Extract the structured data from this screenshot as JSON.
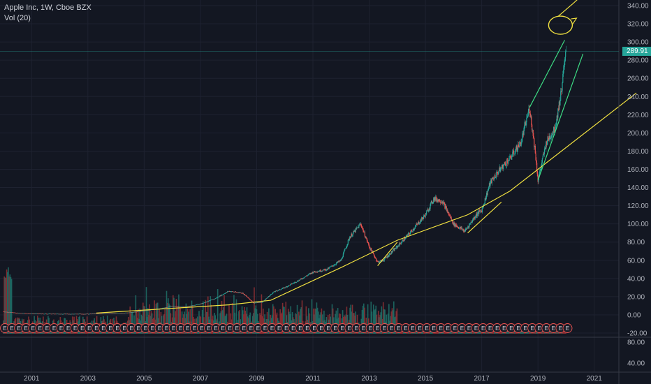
{
  "legend": {
    "title": "Apple Inc, 1W, Cboe BZX",
    "volume": "Vol (20)"
  },
  "last_price": "289.91",
  "colors": {
    "background": "#131722",
    "grid": "#1e2230",
    "axis": "#b2b5be",
    "up": "#26a69a",
    "down": "#ef5350",
    "trend_yellow": "#f0e040",
    "trend_green": "#3ddc84",
    "volume_up": "#1f6b65",
    "volume_down": "#8b2f33",
    "earnings_marker": "#ef5350"
  },
  "earnings_marker_label": "E",
  "chart_data": {
    "type": "candlestick",
    "title": "Apple Inc, 1W, Cboe BZX",
    "x_ticks": [
      "2001",
      "2003",
      "2005",
      "2007",
      "2009",
      "2011",
      "2013",
      "2015",
      "2017",
      "2019",
      "2021"
    ],
    "y_ticks": [
      "340.00",
      "320.00",
      "300.00",
      "280.00",
      "260.00",
      "240.00",
      "220.00",
      "200.00",
      "180.00",
      "160.00",
      "140.00",
      "120.00",
      "100.00",
      "80.00",
      "60.00",
      "40.00",
      "20.00",
      "0.00",
      "-20.00"
    ],
    "volume_y_ticks": [
      "80.00",
      "40.00"
    ],
    "ylim": [
      -20,
      340
    ],
    "xlim": [
      2000.0,
      2022.0
    ],
    "price_path": [
      [
        2000.0,
        3.5
      ],
      [
        2000.5,
        2.0
      ],
      [
        2001.0,
        1.2
      ],
      [
        2002.0,
        1.0
      ],
      [
        2003.0,
        1.0
      ],
      [
        2004.0,
        1.6
      ],
      [
        2004.5,
        2.5
      ],
      [
        2005.0,
        4.5
      ],
      [
        2005.5,
        6.5
      ],
      [
        2006.0,
        9.5
      ],
      [
        2006.5,
        9.0
      ],
      [
        2007.0,
        12.0
      ],
      [
        2007.5,
        17.5
      ],
      [
        2008.0,
        26.0
      ],
      [
        2008.5,
        24.0
      ],
      [
        2008.9,
        13.0
      ],
      [
        2009.2,
        14.0
      ],
      [
        2009.6,
        25.0
      ],
      [
        2010.0,
        30.0
      ],
      [
        2010.5,
        38.0
      ],
      [
        2011.0,
        47.0
      ],
      [
        2011.5,
        50.0
      ],
      [
        2012.0,
        60.0
      ],
      [
        2012.3,
        85.0
      ],
      [
        2012.7,
        100.0
      ],
      [
        2013.0,
        75.0
      ],
      [
        2013.3,
        58.0
      ],
      [
        2013.5,
        60.0
      ],
      [
        2014.0,
        75.0
      ],
      [
        2014.5,
        92.0
      ],
      [
        2015.0,
        110.0
      ],
      [
        2015.3,
        128.0
      ],
      [
        2015.6,
        125.0
      ],
      [
        2016.0,
        100.0
      ],
      [
        2016.4,
        92.0
      ],
      [
        2016.8,
        110.0
      ],
      [
        2017.0,
        115.0
      ],
      [
        2017.3,
        145.0
      ],
      [
        2017.6,
        158.0
      ],
      [
        2018.0,
        172.0
      ],
      [
        2018.4,
        190.0
      ],
      [
        2018.7,
        228.0
      ],
      [
        2018.9,
        180.0
      ],
      [
        2019.0,
        148.0
      ],
      [
        2019.3,
        190.0
      ],
      [
        2019.6,
        205.0
      ],
      [
        2019.8,
        240.0
      ],
      [
        2020.0,
        289.91
      ]
    ],
    "trendlines": [
      {
        "color": "yellow",
        "points": [
          [
            2003.3,
            2.0
          ],
          [
            2008.0,
            11.0
          ],
          [
            2009.5,
            16.0
          ],
          [
            2012.0,
            52.0
          ],
          [
            2014.0,
            82.0
          ],
          [
            2016.5,
            110.0
          ],
          [
            2018.0,
            136.0
          ],
          [
            2019.0,
            160.0
          ],
          [
            2022.5,
            244.0
          ]
        ]
      },
      {
        "color": "yellow",
        "points": [
          [
            2013.3,
            54.0
          ],
          [
            2014.0,
            80.0
          ]
        ]
      },
      {
        "color": "yellow",
        "points": [
          [
            2016.5,
            90.0
          ],
          [
            2017.7,
            124.0
          ]
        ]
      },
      {
        "color": "green",
        "points": [
          [
            2018.7,
            228.0
          ],
          [
            2019.95,
            302.0
          ]
        ]
      },
      {
        "color": "green",
        "points": [
          [
            2019.0,
            148.0
          ],
          [
            2020.6,
            287.0
          ]
        ]
      }
    ],
    "annotation": {
      "type": "circle-with-arrow",
      "x": 2019.8,
      "y": 320.0
    }
  }
}
